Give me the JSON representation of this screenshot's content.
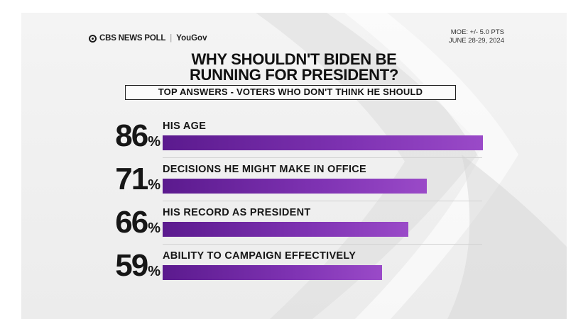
{
  "header": {
    "brand_cbs": "CBS NEWS POLL",
    "brand_partner": "YouGov",
    "moe": "MOE: +/- 5.0 PTS",
    "dates": "JUNE 28-29, 2024"
  },
  "chart_data": {
    "type": "bar",
    "title_line1": "WHY SHOULDN'T BIDEN BE",
    "title_line2": "RUNNING FOR PRESIDENT?",
    "subtitle": "TOP ANSWERS - VOTERS WHO DON'T THINK HE SHOULD",
    "categories": [
      "HIS AGE",
      "DECISIONS HE MIGHT MAKE IN OFFICE",
      "HIS RECORD AS PRESIDENT",
      "ABILITY TO CAMPAIGN EFFECTIVELY"
    ],
    "values": [
      86,
      71,
      66,
      59
    ],
    "value_labels": [
      "86",
      "71",
      "66",
      "59"
    ],
    "unit": "%",
    "bar_color": "#7a2fb0",
    "xlim": [
      0,
      100
    ]
  }
}
